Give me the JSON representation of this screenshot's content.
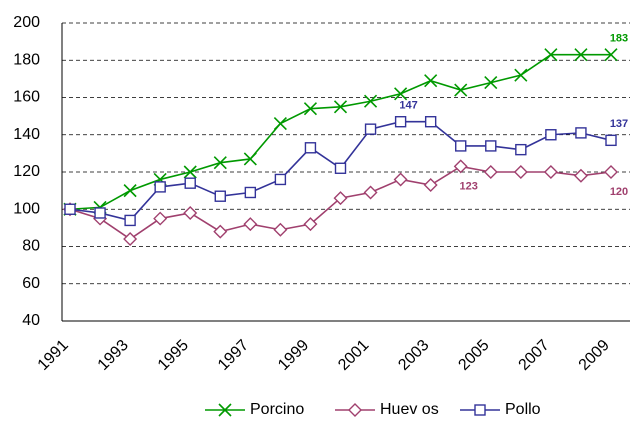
{
  "chart_data": {
    "type": "line",
    "categories": [
      "1991",
      null,
      "1993",
      null,
      "1995",
      null,
      "1997",
      null,
      "1999",
      null,
      "2001",
      null,
      "2003",
      null,
      "2005",
      null,
      "2007",
      null,
      "2009"
    ],
    "series": [
      {
        "name": "Porcino",
        "color": "#009900",
        "marker": "x",
        "values": [
          100,
          101,
          110,
          116,
          120,
          125,
          127,
          146,
          154,
          155,
          158,
          162,
          169,
          164,
          168,
          172,
          183,
          183,
          183
        ],
        "value_labels": [
          null,
          null,
          null,
          null,
          null,
          null,
          null,
          null,
          null,
          null,
          null,
          null,
          null,
          null,
          null,
          null,
          null,
          null,
          "183"
        ]
      },
      {
        "name": "Huev os",
        "color": "#a0406e",
        "marker": "diamond",
        "values": [
          100,
          95,
          84,
          95,
          98,
          88,
          92,
          89,
          92,
          106,
          109,
          116,
          113,
          123,
          120,
          120,
          120,
          118,
          120
        ],
        "value_labels": [
          null,
          null,
          null,
          null,
          null,
          null,
          null,
          null,
          null,
          null,
          null,
          null,
          null,
          "123",
          null,
          null,
          null,
          null,
          "120"
        ]
      },
      {
        "name": "Pollo",
        "color": "#333399",
        "marker": "square",
        "values": [
          100,
          98,
          94,
          112,
          114,
          107,
          109,
          116,
          133,
          122,
          143,
          147,
          147,
          134,
          134,
          132,
          140,
          141,
          137
        ],
        "value_labels": [
          null,
          null,
          null,
          null,
          null,
          null,
          null,
          null,
          null,
          null,
          null,
          "147",
          null,
          null,
          null,
          null,
          null,
          null,
          "137"
        ]
      }
    ],
    "ylim": [
      40,
      200
    ],
    "yticks": [
      40,
      60,
      80,
      100,
      120,
      140,
      160,
      180,
      200
    ],
    "grid": true,
    "legend": "bottom"
  }
}
